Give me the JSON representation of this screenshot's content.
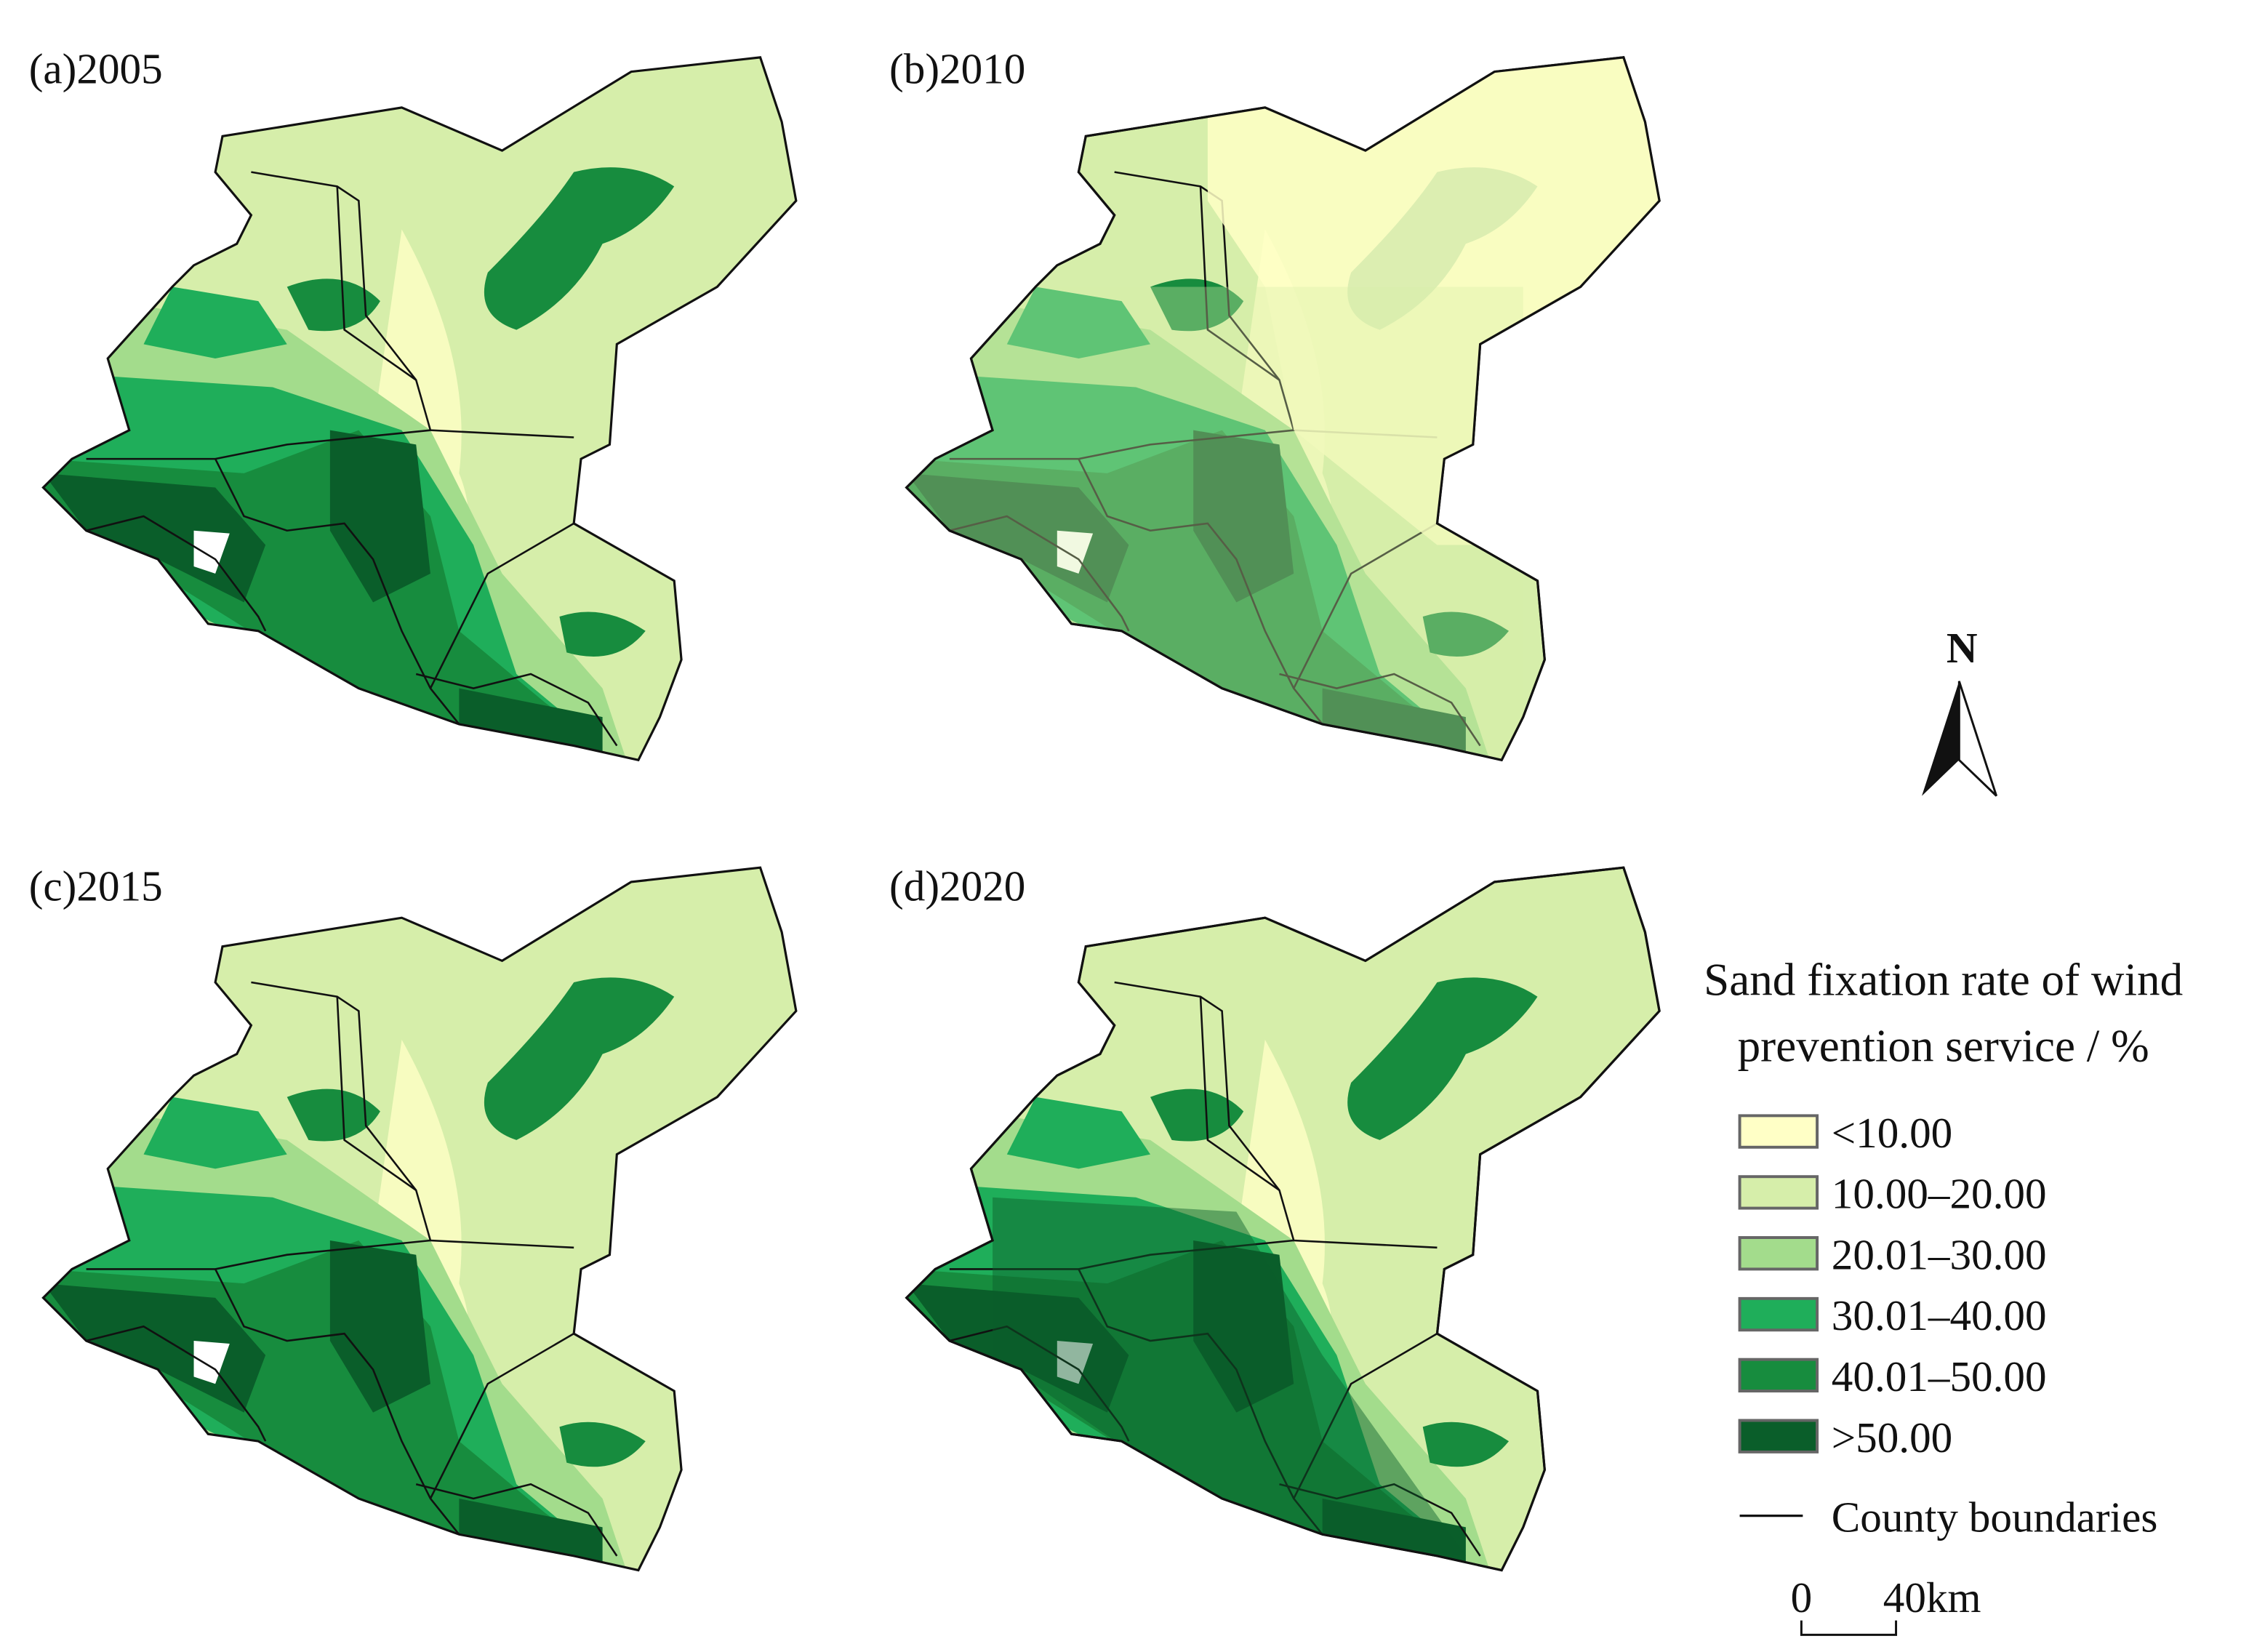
{
  "panels": [
    {
      "label": "(a)2005"
    },
    {
      "label": "(b)2010"
    },
    {
      "label": "(c)2015"
    },
    {
      "label": "(d)2020"
    }
  ],
  "north_arrow": {
    "label": "N"
  },
  "legend": {
    "title_lines": [
      "Sand fixation rate of wind",
      "prevention service / %"
    ],
    "items": [
      {
        "label": "<10.00",
        "color": "#ffffc6"
      },
      {
        "label": "10.00–20.00",
        "color": "#d6eeaa"
      },
      {
        "label": "20.01–30.00",
        "color": "#a3dc8c"
      },
      {
        "label": "30.01–40.00",
        "color": "#1fae5a"
      },
      {
        "label": "40.01–50.00",
        "color": "#178c3e"
      },
      {
        "label": ">50.00",
        "color": "#0a5e2a"
      }
    ],
    "boundary_label": "County boundaries"
  },
  "scale_bar": {
    "labels": [
      "0",
      "40km"
    ]
  }
}
